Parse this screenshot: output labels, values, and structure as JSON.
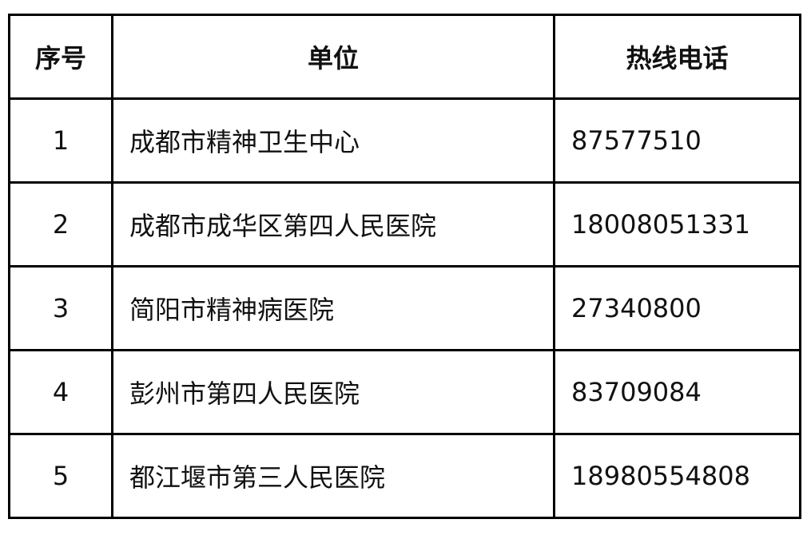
{
  "table": {
    "header": [
      "序号",
      "单位",
      "热线电话"
    ],
    "rows": [
      [
        "1",
        "成都市精神卫生中心",
        "87577510"
      ],
      [
        "2",
        "成都市成华区第四人民医院",
        "18008051331"
      ],
      [
        "3",
        "简阳市精神病医院",
        "27340800"
      ],
      [
        "4",
        "彭州市第四人民医院",
        "83709084"
      ],
      [
        "5",
        "都江堰市第三人民医院",
        "18980554808"
      ]
    ]
  }
}
